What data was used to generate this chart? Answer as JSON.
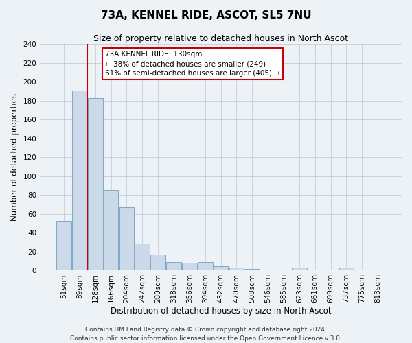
{
  "title": "73A, KENNEL RIDE, ASCOT, SL5 7NU",
  "subtitle": "Size of property relative to detached houses in North Ascot",
  "xlabel": "Distribution of detached houses by size in North Ascot",
  "ylabel": "Number of detached properties",
  "bar_labels": [
    "51sqm",
    "89sqm",
    "128sqm",
    "166sqm",
    "204sqm",
    "242sqm",
    "280sqm",
    "318sqm",
    "356sqm",
    "394sqm",
    "432sqm",
    "470sqm",
    "508sqm",
    "546sqm",
    "585sqm",
    "623sqm",
    "661sqm",
    "699sqm",
    "737sqm",
    "775sqm",
    "813sqm"
  ],
  "bar_values": [
    53,
    191,
    183,
    85,
    67,
    29,
    17,
    9,
    8,
    9,
    5,
    3,
    2,
    1,
    0,
    3,
    0,
    0,
    3,
    0,
    1
  ],
  "bar_color": "#ccd9e8",
  "bar_edge_color": "#7aaac8",
  "property_line_x": 1.5,
  "property_line_color": "#cc0000",
  "annotation_title": "73A KENNEL RIDE: 130sqm",
  "annotation_line1": "← 38% of detached houses are smaller (249)",
  "annotation_line2": "61% of semi-detached houses are larger (405) →",
  "annotation_box_color": "#ffffff",
  "annotation_box_edge": "#cc0000",
  "ylim": [
    0,
    240
  ],
  "yticks": [
    0,
    20,
    40,
    60,
    80,
    100,
    120,
    140,
    160,
    180,
    200,
    220,
    240
  ],
  "footer1": "Contains HM Land Registry data © Crown copyright and database right 2024.",
  "footer2": "Contains public sector information licensed under the Open Government Licence v.3.0.",
  "bg_color": "#edf2f7",
  "plot_bg_color": "#edf2f7",
  "grid_color": "#c5cdd8",
  "title_fontsize": 11,
  "subtitle_fontsize": 9,
  "xlabel_fontsize": 8.5,
  "ylabel_fontsize": 8.5,
  "tick_fontsize": 7.5,
  "footer_fontsize": 6.5,
  "annotation_fontsize": 7.5
}
